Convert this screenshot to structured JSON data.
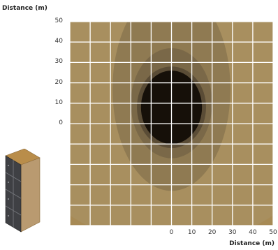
{
  "chart_data": {
    "type": "heatmap",
    "ylabel": "Distance (m)",
    "xlabel": "Distance (m)",
    "x_ticks": [
      "0",
      "10",
      "20",
      "30",
      "40",
      "50"
    ],
    "y_ticks": [
      "50",
      "40",
      "30",
      "20",
      "10",
      "0"
    ],
    "xlim": [
      -50,
      50
    ],
    "ylim": [
      -50,
      50
    ],
    "grid_step": 10,
    "grid": true,
    "source": {
      "x": 0,
      "y": 0
    },
    "contours": [
      {
        "level": 1,
        "color": "#a88f5f",
        "cx": 0,
        "cy": 40,
        "rx": 95,
        "ry": 100
      },
      {
        "level": 2,
        "color": "#8f7a52",
        "cx": 0,
        "cy": 17,
        "rx": 29,
        "ry": 50
      },
      {
        "level": 3,
        "color": "#7a6848",
        "cx": 0,
        "cy": 10,
        "rx": 20,
        "ry": 27
      },
      {
        "level": 4,
        "color": "#5a4c36",
        "cx": 0,
        "cy": 8,
        "rx": 17,
        "ry": 20
      },
      {
        "level": 5,
        "color": "#161009",
        "cx": 0,
        "cy": 8,
        "rx": 15,
        "ry": 18
      }
    ],
    "colors": {
      "background": "#a78a55",
      "grid": "#ffffff",
      "cabinet_top": "#b98d4a",
      "cabinet_side": "#b99a70",
      "cabinet_front": "#3f4044"
    },
    "icon": "server-rack-icon"
  }
}
